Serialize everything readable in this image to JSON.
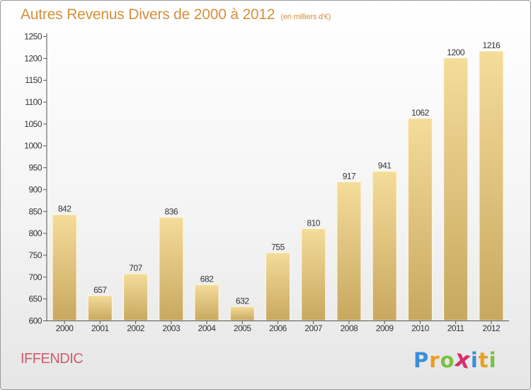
{
  "header": {
    "title": "Autres Revenus Divers de 2000 à 2012",
    "subtitle": "(en milliers d'€)"
  },
  "footer": {
    "commune": "IFFENDIC",
    "logo_letters": [
      "P",
      "r",
      "o",
      "x",
      "i",
      "t",
      "i"
    ],
    "logo_colors": [
      "#3a8fd8",
      "#e8a020",
      "#7ac142",
      "#d4306e",
      "#3a8fd8",
      "#e8a020",
      "#7ac142"
    ]
  },
  "colors": {
    "bar_light": "#f4dc9a",
    "bar_dark": "#c8a860",
    "title": "#d4903a",
    "commune": "#cf5b6e"
  },
  "chart_data": {
    "type": "bar",
    "title": "Autres Revenus Divers de 2000 à 2012",
    "subtitle": "(en milliers d'€)",
    "categories": [
      "2000",
      "2001",
      "2002",
      "2003",
      "2004",
      "2005",
      "2006",
      "2007",
      "2008",
      "2009",
      "2010",
      "2011",
      "2012"
    ],
    "values": [
      842,
      657,
      707,
      836,
      682,
      632,
      755,
      810,
      917,
      941,
      1062,
      1200,
      1216
    ],
    "ylim": [
      600,
      1250
    ],
    "yticks": [
      600,
      650,
      700,
      750,
      800,
      850,
      900,
      950,
      1000,
      1050,
      1100,
      1150,
      1200,
      1250
    ],
    "grid": false,
    "data_labels": true
  }
}
